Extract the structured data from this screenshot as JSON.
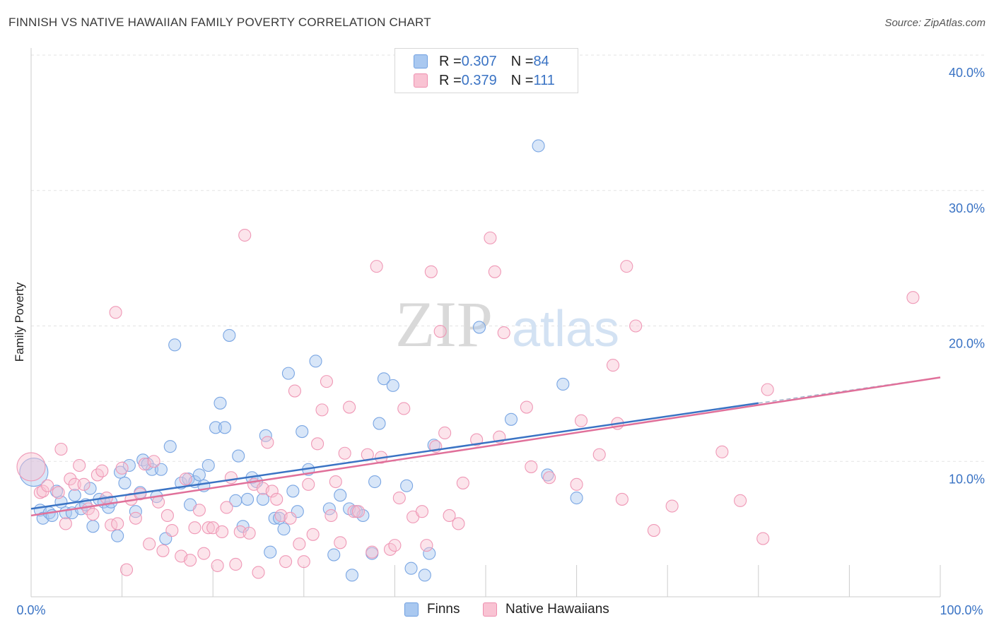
{
  "header": {
    "title": "FINNISH VS NATIVE HAWAIIAN FAMILY POVERTY CORRELATION CHART",
    "source": "Source: ZipAtlas.com"
  },
  "watermark": {
    "zip": "ZIP",
    "atlas": "atlas"
  },
  "legend": {
    "series": [
      {
        "r_label": "R = ",
        "r_value": "0.307",
        "n_label": "N = ",
        "n_value": "84",
        "color": "#a9c8f0",
        "border": "#6f9fe0"
      },
      {
        "r_label": "R = ",
        "r_value": "0.379",
        "n_label": "N = ",
        "n_value": "111",
        "color": "#f9c3d3",
        "border": "#ee8faf"
      }
    ]
  },
  "bottom_legend": {
    "items": [
      {
        "label": "Finns",
        "color": "#a9c8f0",
        "border": "#6f9fe0"
      },
      {
        "label": "Native Hawaiians",
        "color": "#f9c3d3",
        "border": "#ee8faf"
      }
    ]
  },
  "chart_data": {
    "type": "scatter",
    "title": "FINNISH VS NATIVE HAWAIIAN FAMILY POVERTY CORRELATION CHART",
    "xlabel": "",
    "ylabel": "Family Poverty",
    "xlim": [
      0,
      100
    ],
    "ylim": [
      0,
      40
    ],
    "x_tick_labels": [
      "0.0%",
      "100.0%"
    ],
    "y_ticks": [
      10,
      20,
      30,
      40
    ],
    "y_tick_labels": [
      "10.0%",
      "20.0%",
      "30.0%",
      "40.0%"
    ],
    "grid": true,
    "legend_position": "top-center",
    "colors": {
      "finns": "#3a73c4",
      "hawaiians": "#e0709a",
      "tick_text": "#3a73c4"
    },
    "series": [
      {
        "name": "Finns",
        "trend": {
          "x": [
            0,
            80
          ],
          "y": [
            6.5,
            14.3
          ],
          "dashed_to": [
            100,
            16.2
          ]
        },
        "points": [
          [
            0.3,
            9.2
          ],
          [
            1.0,
            6.4
          ],
          [
            1.3,
            5.8
          ],
          [
            2.0,
            6.2
          ],
          [
            2.3,
            6.0
          ],
          [
            2.8,
            7.8
          ],
          [
            3.3,
            7.0
          ],
          [
            3.8,
            6.2
          ],
          [
            4.5,
            6.2
          ],
          [
            4.8,
            7.5
          ],
          [
            5.5,
            6.5
          ],
          [
            6.0,
            6.8
          ],
          [
            6.5,
            8.0
          ],
          [
            6.8,
            5.2
          ],
          [
            7.5,
            7.2
          ],
          [
            8.0,
            7.0
          ],
          [
            8.5,
            6.6
          ],
          [
            8.8,
            7.0
          ],
          [
            9.5,
            4.5
          ],
          [
            9.8,
            9.2
          ],
          [
            10.3,
            8.4
          ],
          [
            10.8,
            9.7
          ],
          [
            11.5,
            6.3
          ],
          [
            12.0,
            7.7
          ],
          [
            12.3,
            10.1
          ],
          [
            12.8,
            9.8
          ],
          [
            13.3,
            9.4
          ],
          [
            13.8,
            7.4
          ],
          [
            14.3,
            9.4
          ],
          [
            14.8,
            4.3
          ],
          [
            15.3,
            11.1
          ],
          [
            15.8,
            18.6
          ],
          [
            16.5,
            8.4
          ],
          [
            17.3,
            8.7
          ],
          [
            17.5,
            6.8
          ],
          [
            18.0,
            8.5
          ],
          [
            18.5,
            9.0
          ],
          [
            19.0,
            8.2
          ],
          [
            19.5,
            9.7
          ],
          [
            20.3,
            12.5
          ],
          [
            20.8,
            14.3
          ],
          [
            21.3,
            12.5
          ],
          [
            21.8,
            19.3
          ],
          [
            22.5,
            7.1
          ],
          [
            22.8,
            10.4
          ],
          [
            23.3,
            5.2
          ],
          [
            23.8,
            7.2
          ],
          [
            24.3,
            8.8
          ],
          [
            24.8,
            8.5
          ],
          [
            25.5,
            7.2
          ],
          [
            25.8,
            11.9
          ],
          [
            26.3,
            3.3
          ],
          [
            26.8,
            5.8
          ],
          [
            27.3,
            5.8
          ],
          [
            27.8,
            5.0
          ],
          [
            28.3,
            16.5
          ],
          [
            28.8,
            7.8
          ],
          [
            29.3,
            6.3
          ],
          [
            29.8,
            12.2
          ],
          [
            30.5,
            9.4
          ],
          [
            31.3,
            17.4
          ],
          [
            32.8,
            6.5
          ],
          [
            33.3,
            3.1
          ],
          [
            34.0,
            7.5
          ],
          [
            35.0,
            6.5
          ],
          [
            35.3,
            1.6
          ],
          [
            35.8,
            6.3
          ],
          [
            36.5,
            6.0
          ],
          [
            37.5,
            3.2
          ],
          [
            37.8,
            8.5
          ],
          [
            38.3,
            12.8
          ],
          [
            38.8,
            16.1
          ],
          [
            39.8,
            15.6
          ],
          [
            41.3,
            8.2
          ],
          [
            41.8,
            2.1
          ],
          [
            43.3,
            1.6
          ],
          [
            43.8,
            3.2
          ],
          [
            44.3,
            11.2
          ],
          [
            49.3,
            19.9
          ],
          [
            52.8,
            13.1
          ],
          [
            55.8,
            33.3
          ],
          [
            56.8,
            9.0
          ],
          [
            58.5,
            15.7
          ],
          [
            60.0,
            7.3
          ]
        ]
      },
      {
        "name": "Native Hawaiians",
        "trend": {
          "x": [
            0,
            100
          ],
          "y": [
            6.0,
            16.2
          ]
        },
        "points": [
          [
            0.0,
            9.6
          ],
          [
            1.0,
            7.7
          ],
          [
            1.3,
            7.8
          ],
          [
            1.8,
            8.2
          ],
          [
            3.0,
            7.7
          ],
          [
            3.3,
            10.9
          ],
          [
            3.8,
            5.4
          ],
          [
            4.3,
            8.7
          ],
          [
            4.8,
            8.3
          ],
          [
            5.3,
            9.7
          ],
          [
            5.8,
            8.3
          ],
          [
            6.3,
            6.5
          ],
          [
            6.8,
            6.1
          ],
          [
            7.3,
            9.0
          ],
          [
            7.8,
            9.3
          ],
          [
            8.3,
            7.3
          ],
          [
            8.8,
            5.3
          ],
          [
            9.3,
            21.0
          ],
          [
            9.5,
            5.4
          ],
          [
            10.0,
            9.5
          ],
          [
            10.5,
            2.0
          ],
          [
            11.0,
            7.2
          ],
          [
            11.5,
            5.8
          ],
          [
            12.0,
            7.6
          ],
          [
            12.5,
            9.8
          ],
          [
            13.0,
            3.9
          ],
          [
            13.5,
            10.0
          ],
          [
            14.0,
            7.0
          ],
          [
            14.5,
            3.4
          ],
          [
            15.0,
            6.0
          ],
          [
            15.5,
            4.9
          ],
          [
            16.5,
            3.0
          ],
          [
            17.0,
            8.7
          ],
          [
            17.5,
            2.7
          ],
          [
            18.0,
            5.1
          ],
          [
            18.5,
            6.4
          ],
          [
            19.0,
            3.2
          ],
          [
            19.5,
            5.1
          ],
          [
            20.0,
            5.1
          ],
          [
            20.5,
            2.3
          ],
          [
            21.0,
            4.8
          ],
          [
            21.5,
            6.6
          ],
          [
            22.0,
            8.8
          ],
          [
            22.5,
            2.4
          ],
          [
            23.0,
            4.8
          ],
          [
            23.5,
            26.7
          ],
          [
            24.0,
            4.7
          ],
          [
            24.5,
            8.3
          ],
          [
            25.0,
            1.8
          ],
          [
            25.5,
            8.0
          ],
          [
            26.0,
            11.4
          ],
          [
            26.5,
            7.8
          ],
          [
            27.0,
            7.2
          ],
          [
            27.5,
            6.0
          ],
          [
            28.0,
            2.6
          ],
          [
            28.5,
            5.8
          ],
          [
            29.0,
            15.2
          ],
          [
            29.5,
            3.9
          ],
          [
            30.0,
            2.6
          ],
          [
            30.5,
            8.3
          ],
          [
            31.0,
            4.6
          ],
          [
            31.5,
            11.3
          ],
          [
            32.0,
            13.8
          ],
          [
            32.5,
            15.9
          ],
          [
            33.0,
            6.0
          ],
          [
            33.5,
            8.5
          ],
          [
            34.0,
            4.0
          ],
          [
            34.5,
            10.6
          ],
          [
            35.0,
            14.0
          ],
          [
            35.5,
            6.3
          ],
          [
            36.0,
            6.3
          ],
          [
            37.0,
            10.5
          ],
          [
            37.5,
            3.3
          ],
          [
            38.0,
            24.4
          ],
          [
            38.5,
            10.3
          ],
          [
            39.5,
            3.5
          ],
          [
            40.0,
            3.8
          ],
          [
            40.5,
            7.3
          ],
          [
            41.0,
            13.9
          ],
          [
            42.0,
            5.9
          ],
          [
            43.0,
            6.3
          ],
          [
            43.5,
            3.8
          ],
          [
            44.0,
            24.0
          ],
          [
            44.5,
            11.1
          ],
          [
            45.0,
            19.6
          ],
          [
            45.5,
            12.1
          ],
          [
            46.0,
            6.0
          ],
          [
            47.0,
            5.4
          ],
          [
            47.5,
            8.4
          ],
          [
            49.0,
            11.6
          ],
          [
            50.5,
            26.5
          ],
          [
            51.0,
            24.0
          ],
          [
            51.5,
            11.8
          ],
          [
            52.0,
            19.5
          ],
          [
            54.5,
            14.0
          ],
          [
            55.0,
            9.6
          ],
          [
            57.0,
            8.8
          ],
          [
            60.0,
            8.3
          ],
          [
            60.5,
            13.0
          ],
          [
            62.5,
            10.5
          ],
          [
            64.0,
            17.1
          ],
          [
            64.5,
            12.8
          ],
          [
            65.0,
            7.2
          ],
          [
            65.5,
            24.4
          ],
          [
            66.5,
            20.0
          ],
          [
            68.5,
            4.9
          ],
          [
            70.5,
            6.7
          ],
          [
            76.0,
            10.7
          ],
          [
            78.0,
            7.1
          ],
          [
            80.5,
            4.3
          ],
          [
            81.0,
            15.3
          ],
          [
            97.0,
            22.1
          ]
        ]
      }
    ]
  }
}
